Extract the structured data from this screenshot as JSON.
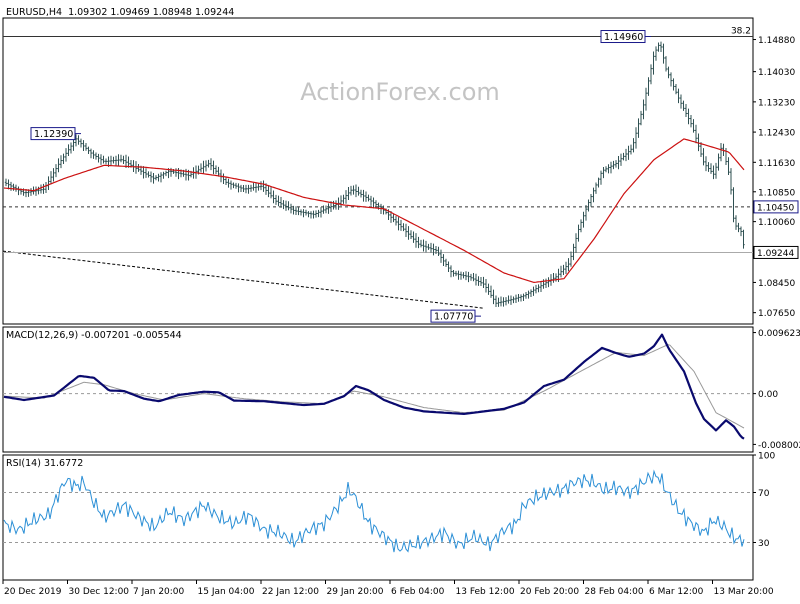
{
  "header": {
    "symbol": "EURUSD,H4",
    "ohlc": "1.09302 1.09469 1.08948 1.09244"
  },
  "watermark": "ActionForex.com",
  "colors": {
    "price_bar": "#2f5052",
    "sma": "#cc1111",
    "macd": "#0a0a6e",
    "signal": "#999999",
    "rsi": "#2b8fd6",
    "label_border": "#1a1a8a",
    "frame": "#000000",
    "dotted": "#999999"
  },
  "chart_data": [
    {
      "type": "ohlc",
      "panel": "price",
      "title": "EURUSD,H4",
      "ylim": [
        1.0735,
        1.1545
      ],
      "y_ticks": [
        "1.14880",
        "1.14030",
        "1.13230",
        "1.12430",
        "1.11630",
        "1.10850",
        "1.10060",
        "1.09244",
        "1.08450",
        "1.07650"
      ],
      "x_ticks": [
        "20 Dec 2019",
        "30 Dec 12:00",
        "7 Jan 20:00",
        "15 Jan 04:00",
        "22 Jan 12:00",
        "29 Jan 20:00",
        "6 Feb 04:00",
        "13 Feb 12:00",
        "20 Feb 20:00",
        "28 Feb 04:00",
        "6 Mar 12:00",
        "13 Mar 20:00"
      ],
      "series": [
        {
          "name": "EURUSD",
          "kind": "close_path",
          "points": [
            [
              0,
              1.111
            ],
            [
              20,
              1.1082
            ],
            [
              40,
              1.1092
            ],
            [
              55,
              1.116
            ],
            [
              72,
              1.1225
            ],
            [
              88,
              1.1185
            ],
            [
              100,
              1.1165
            ],
            [
              118,
              1.117
            ],
            [
              130,
              1.115
            ],
            [
              150,
              1.112
            ],
            [
              165,
              1.114
            ],
            [
              185,
              1.1128
            ],
            [
              205,
              1.116
            ],
            [
              222,
              1.111
            ],
            [
              240,
              1.1092
            ],
            [
              258,
              1.11
            ],
            [
              272,
              1.106
            ],
            [
              290,
              1.1035
            ],
            [
              310,
              1.1025
            ],
            [
              322,
              1.104
            ],
            [
              335,
              1.1055
            ],
            [
              348,
              1.1092
            ],
            [
              362,
              1.107
            ],
            [
              378,
              1.104
            ],
            [
              398,
              1.099
            ],
            [
              415,
              1.0945
            ],
            [
              432,
              1.093
            ],
            [
              448,
              1.087
            ],
            [
              465,
              1.086
            ],
            [
              480,
              1.084
            ],
            [
              492,
              1.079
            ],
            [
              508,
              1.08
            ],
            [
              520,
              1.081
            ],
            [
              538,
              1.0838
            ],
            [
              552,
              1.086
            ],
            [
              565,
              1.0895
            ],
            [
              575,
              1.099
            ],
            [
              585,
              1.106
            ],
            [
              598,
              1.114
            ],
            [
              612,
              1.116
            ],
            [
              628,
              1.12
            ],
            [
              640,
              1.132
            ],
            [
              650,
              1.145
            ],
            [
              656,
              1.148
            ],
            [
              662,
              1.141
            ],
            [
              675,
              1.133
            ],
            [
              688,
              1.126
            ],
            [
              700,
              1.116
            ],
            [
              710,
              1.113
            ],
            [
              718,
              1.121
            ],
            [
              726,
              1.112
            ],
            [
              730,
              1.1
            ],
            [
              737,
              1.098
            ],
            [
              741,
              1.0924
            ]
          ]
        },
        {
          "name": "SMA",
          "kind": "line",
          "points": [
            [
              0,
              1.1095
            ],
            [
              30,
              1.1088
            ],
            [
              60,
              1.112
            ],
            [
              100,
              1.1155
            ],
            [
              140,
              1.115
            ],
            [
              180,
              1.114
            ],
            [
              220,
              1.1125
            ],
            [
              260,
              1.1105
            ],
            [
              300,
              1.107
            ],
            [
              340,
              1.105
            ],
            [
              380,
              1.104
            ],
            [
              420,
              1.0985
            ],
            [
              460,
              1.093
            ],
            [
              500,
              1.087
            ],
            [
              530,
              1.0845
            ],
            [
              560,
              1.0855
            ],
            [
              590,
              1.096
            ],
            [
              620,
              1.108
            ],
            [
              650,
              1.117
            ],
            [
              680,
              1.1225
            ],
            [
              700,
              1.121
            ],
            [
              725,
              1.119
            ],
            [
              741,
              1.114
            ]
          ]
        }
      ],
      "levels": [
        {
          "value": 1.1496,
          "label": "38.2"
        },
        {
          "value": 1.1045,
          "label": "1.10450"
        },
        {
          "value": 1.09244,
          "label": "1.09244"
        }
      ],
      "trendline": [
        [
          0,
          1.0928
        ],
        [
          480,
          1.0777
        ]
      ],
      "annotations": [
        {
          "text": "1.12390",
          "x": 78,
          "value": 1.1239
        },
        {
          "text": "1.14960",
          "x": 648,
          "value": 1.1496
        },
        {
          "text": "1.07770",
          "x": 478,
          "value": 1.0777
        }
      ]
    },
    {
      "type": "line",
      "panel": "macd",
      "title": "MACD(12,26,9) -0.007201 -0.005544",
      "ylim": [
        -0.0092,
        0.0105
      ],
      "y_ticks": [
        "0.009623",
        "0.00",
        "-0.008002"
      ],
      "series": [
        {
          "name": "MACD",
          "points": [
            [
              0,
              -0.0005
            ],
            [
              20,
              -0.001
            ],
            [
              50,
              -0.0003
            ],
            [
              75,
              0.0028
            ],
            [
              90,
              0.0025
            ],
            [
              105,
              0.0005
            ],
            [
              120,
              0.0004
            ],
            [
              140,
              -0.0008
            ],
            [
              155,
              -0.0012
            ],
            [
              175,
              -0.0002
            ],
            [
              200,
              0.0003
            ],
            [
              215,
              0.0002
            ],
            [
              230,
              -0.0011
            ],
            [
              260,
              -0.0012
            ],
            [
              280,
              -0.0015
            ],
            [
              300,
              -0.0018
            ],
            [
              320,
              -0.0016
            ],
            [
              340,
              -0.0004
            ],
            [
              352,
              0.0012
            ],
            [
              365,
              0.0005
            ],
            [
              380,
              -0.001
            ],
            [
              400,
              -0.0022
            ],
            [
              420,
              -0.0028
            ],
            [
              440,
              -0.003
            ],
            [
              460,
              -0.0032
            ],
            [
              480,
              -0.0028
            ],
            [
              500,
              -0.0024
            ],
            [
              520,
              -0.0014
            ],
            [
              540,
              0.0012
            ],
            [
              560,
              0.0022
            ],
            [
              580,
              0.005
            ],
            [
              598,
              0.0072
            ],
            [
              612,
              0.0064
            ],
            [
              625,
              0.0058
            ],
            [
              640,
              0.0063
            ],
            [
              650,
              0.0075
            ],
            [
              658,
              0.0093
            ],
            [
              665,
              0.007
            ],
            [
              680,
              0.0035
            ],
            [
              692,
              -0.0015
            ],
            [
              700,
              -0.004
            ],
            [
              712,
              -0.0058
            ],
            [
              722,
              -0.0042
            ],
            [
              730,
              -0.0052
            ],
            [
              737,
              -0.0068
            ],
            [
              741,
              -0.0072
            ]
          ]
        },
        {
          "name": "Signal",
          "points": [
            [
              0,
              -0.0004
            ],
            [
              40,
              -0.0007
            ],
            [
              80,
              0.0018
            ],
            [
              100,
              0.0014
            ],
            [
              130,
              0.0
            ],
            [
              160,
              -0.001
            ],
            [
              200,
              0.0
            ],
            [
              240,
              -0.0008
            ],
            [
              280,
              -0.0013
            ],
            [
              320,
              -0.0016
            ],
            [
              350,
              0.0004
            ],
            [
              380,
              -0.0005
            ],
            [
              420,
              -0.0022
            ],
            [
              460,
              -0.003
            ],
            [
              500,
              -0.0026
            ],
            [
              540,
              0.0004
            ],
            [
              580,
              0.0038
            ],
            [
              612,
              0.0065
            ],
            [
              640,
              0.006
            ],
            [
              665,
              0.0078
            ],
            [
              690,
              0.0035
            ],
            [
              712,
              -0.003
            ],
            [
              741,
              -0.0055
            ]
          ]
        }
      ]
    },
    {
      "type": "line",
      "panel": "rsi",
      "title": "RSI(14) 31.6772",
      "ylim": [
        0,
        100
      ],
      "y_ticks": [
        "100",
        "70",
        "30"
      ],
      "levels": [
        70,
        30
      ],
      "series": [
        {
          "name": "RSI",
          "points": [
            [
              0,
              45
            ],
            [
              15,
              40
            ],
            [
              30,
              48
            ],
            [
              45,
              52
            ],
            [
              55,
              70
            ],
            [
              62,
              80
            ],
            [
              72,
              75
            ],
            [
              80,
              78
            ],
            [
              90,
              62
            ],
            [
              100,
              50
            ],
            [
              110,
              55
            ],
            [
              120,
              60
            ],
            [
              135,
              50
            ],
            [
              150,
              42
            ],
            [
              165,
              55
            ],
            [
              180,
              48
            ],
            [
              200,
              60
            ],
            [
              215,
              50
            ],
            [
              230,
              45
            ],
            [
              245,
              52
            ],
            [
              260,
              40
            ],
            [
              275,
              38
            ],
            [
              290,
              30
            ],
            [
              305,
              40
            ],
            [
              320,
              45
            ],
            [
              335,
              60
            ],
            [
              345,
              73
            ],
            [
              352,
              65
            ],
            [
              365,
              45
            ],
            [
              380,
              35
            ],
            [
              395,
              25
            ],
            [
              410,
              28
            ],
            [
              425,
              32
            ],
            [
              440,
              38
            ],
            [
              455,
              28
            ],
            [
              470,
              35
            ],
            [
              485,
              28
            ],
            [
              500,
              40
            ],
            [
              512,
              45
            ],
            [
              520,
              60
            ],
            [
              530,
              65
            ],
            [
              545,
              70
            ],
            [
              558,
              72
            ],
            [
              570,
              78
            ],
            [
              580,
              80
            ],
            [
              590,
              78
            ],
            [
              600,
              72
            ],
            [
              612,
              74
            ],
            [
              625,
              70
            ],
            [
              635,
              75
            ],
            [
              645,
              82
            ],
            [
              655,
              83
            ],
            [
              662,
              72
            ],
            [
              675,
              55
            ],
            [
              688,
              45
            ],
            [
              700,
              38
            ],
            [
              710,
              48
            ],
            [
              720,
              43
            ],
            [
              728,
              35
            ],
            [
              735,
              32
            ],
            [
              741,
              32
            ]
          ]
        }
      ]
    }
  ]
}
